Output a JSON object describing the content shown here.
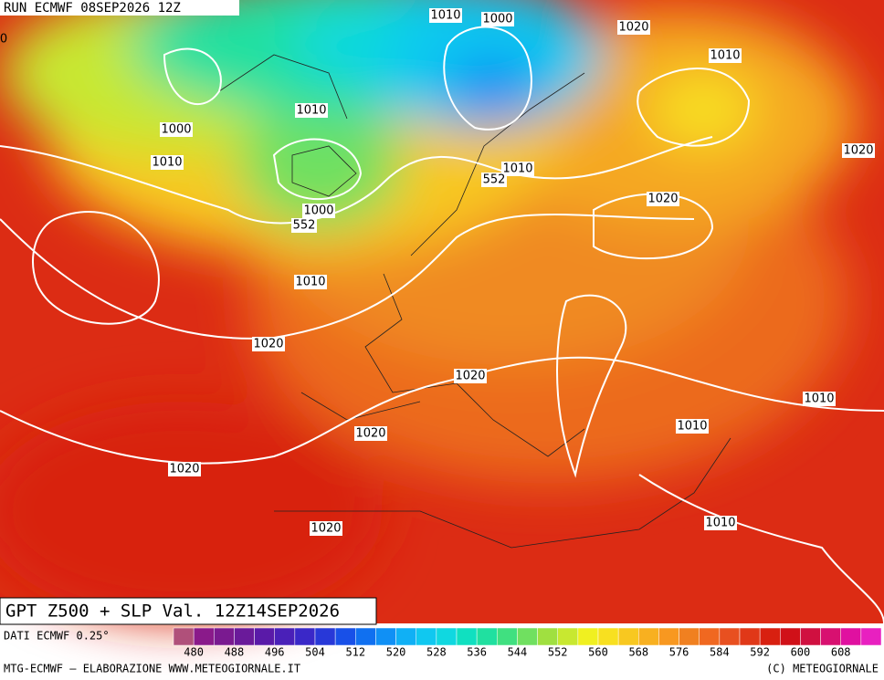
{
  "header": {
    "run": "RUN ECMWF 08SEP2026 12Z"
  },
  "map": {
    "contour_labels": [
      "0",
      "1010",
      "1000",
      "1020",
      "1010",
      "1010",
      "1000",
      "1010",
      "1010",
      "552",
      "1020",
      "1020",
      "1000",
      "552",
      "1010",
      "1020",
      "1020",
      "1010",
      "1020",
      "1010",
      "1020",
      "1020",
      "1010"
    ]
  },
  "footer": {
    "title": "GPT Z500 + SLP Val. 12Z14SEP2026",
    "source": "DATI ECMWF 0.25°",
    "credit": "MTG-ECMWF — ELABORAZIONE WWW.METEOGIORNALE.IT",
    "copyright": "(C) METEOGIORNALE"
  },
  "colorbar": {
    "range": [
      476,
      616
    ],
    "ticks": [
      480,
      488,
      496,
      504,
      512,
      520,
      528,
      536,
      544,
      552,
      560,
      568,
      576,
      584,
      592,
      600,
      608
    ],
    "colors": [
      "#b0507a",
      "#8a1a8a",
      "#7a1a90",
      "#6a1a9a",
      "#5a1aa8",
      "#4a20b8",
      "#3a28c8",
      "#2838d8",
      "#1850e8",
      "#1070f0",
      "#1090f5",
      "#10b0f5",
      "#10c8f0",
      "#10d8e0",
      "#10e0c0",
      "#20e0a0",
      "#40e080",
      "#70e060",
      "#a0e040",
      "#c8e830",
      "#f0f020",
      "#f8e020",
      "#f8c820",
      "#f8b020",
      "#f89820",
      "#f08020",
      "#f06820",
      "#e85020",
      "#e03818",
      "#d82010",
      "#d01018",
      "#d01040",
      "#d81070",
      "#e010a0",
      "#e820c0"
    ]
  }
}
